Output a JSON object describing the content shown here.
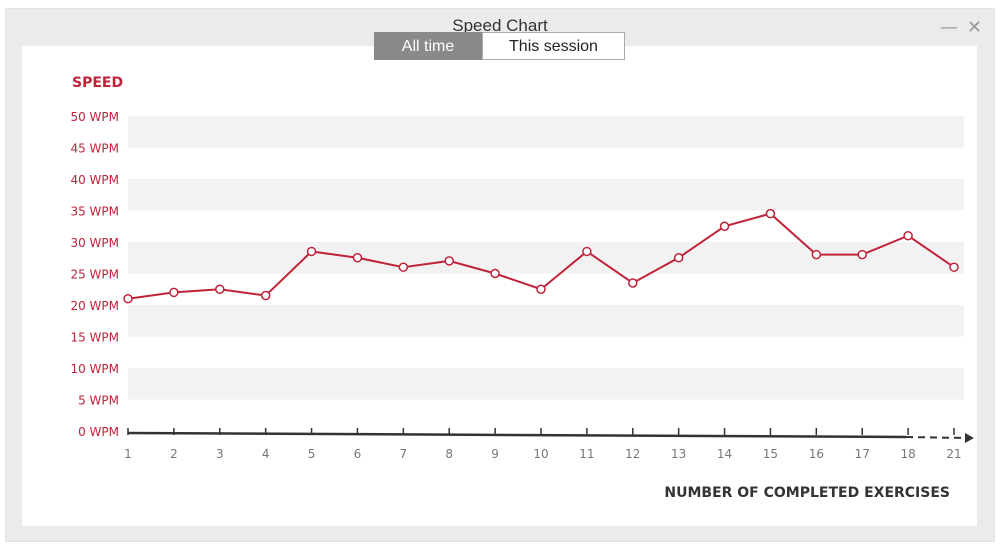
{
  "window": {
    "title": "Speed Chart",
    "minimize_glyph": "—",
    "close_glyph": "✕"
  },
  "tabs": [
    {
      "label": "All time",
      "active": true
    },
    {
      "label": "This session",
      "active": false
    }
  ],
  "chart_data": {
    "type": "line",
    "ylabel": "SPEED",
    "xlabel": "NUMBER OF COMPLETED EXERCISES",
    "ylim": [
      0,
      50
    ],
    "y_ticks": [
      "0 WPM",
      "5 WPM",
      "10 WPM",
      "15 WPM",
      "20 WPM",
      "25 WPM",
      "30 WPM",
      "35 WPM",
      "40 WPM",
      "45 WPM",
      "50 WPM"
    ],
    "categories": [
      "1",
      "2",
      "3",
      "4",
      "5",
      "6",
      "7",
      "8",
      "9",
      "10",
      "11",
      "12",
      "13",
      "14",
      "15",
      "16",
      "17",
      "18",
      "21"
    ],
    "values": [
      21,
      22,
      22.5,
      21.5,
      28.5,
      27.5,
      26,
      27,
      25,
      22.5,
      28.5,
      23.5,
      27.5,
      32.5,
      34.5,
      28,
      28,
      31,
      26
    ],
    "grid": "horizontal bands",
    "legend": "none",
    "colors": {
      "line": "#c0223a",
      "label": "#c0223a",
      "axis": "#333333",
      "band": "#f2f2f2"
    }
  }
}
